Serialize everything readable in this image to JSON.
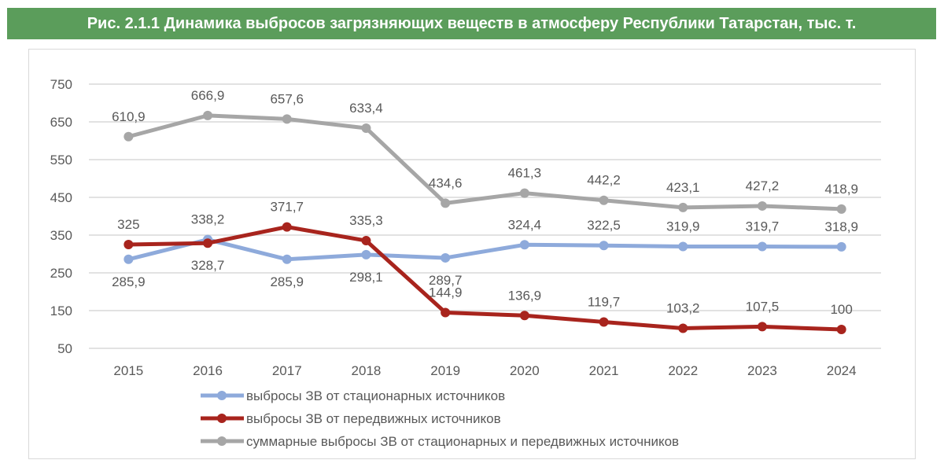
{
  "title": "Рис. 2.1.1 Динамика выбросов загрязняющих веществ в атмосферу Республики Татарстан, тыс. т.",
  "chart_data": {
    "type": "line",
    "title": "Рис. 2.1.1 Динамика выбросов загрязняющих веществ в атмосферу Республики Татарстан, тыс. т.",
    "xlabel": "",
    "ylabel": "",
    "x": [
      "2015",
      "2016",
      "2017",
      "2018",
      "2019",
      "2020",
      "2021",
      "2022",
      "2023",
      "2024"
    ],
    "ylim": [
      50,
      750
    ],
    "yticks": [
      50,
      150,
      250,
      350,
      450,
      550,
      650,
      750
    ],
    "grid": true,
    "legend_position": "bottom",
    "series": [
      {
        "name": "выбросы ЗВ от стационарных источников",
        "color": "#8eaadb",
        "values": [
          285.9,
          338.2,
          285.9,
          298.1,
          289.7,
          324.4,
          322.5,
          319.9,
          319.7,
          318.9
        ],
        "labels": [
          "285,9",
          "338,2",
          "285,9",
          "298,1",
          "289,7",
          "324,4",
          "322,5",
          "319,9",
          "319,7",
          "318,9"
        ],
        "label_pos": [
          "below",
          "above",
          "below",
          "below",
          "below",
          "above",
          "above",
          "above",
          "above",
          "above"
        ]
      },
      {
        "name": "выбросы ЗВ от передвижных источников",
        "color": "#a8241d",
        "values": [
          325,
          328.7,
          371.7,
          335.3,
          144.9,
          136.9,
          119.7,
          103.2,
          107.5,
          100
        ],
        "labels": [
          "325",
          "328,7",
          "371,7",
          "335,3",
          "144,9",
          "136,9",
          "119,7",
          "103,2",
          "107,5",
          "100"
        ],
        "label_pos": [
          "above",
          "below",
          "above",
          "above",
          "above",
          "above",
          "above",
          "above",
          "above",
          "above"
        ]
      },
      {
        "name": "суммарные выбросы ЗВ от стационарных и передвижных источников",
        "color": "#a6a6a6",
        "values": [
          610.9,
          666.9,
          657.6,
          633.4,
          434.6,
          461.3,
          442.2,
          423.1,
          427.2,
          418.9
        ],
        "labels": [
          "610,9",
          "666,9",
          "657,6",
          "633,4",
          "434,6",
          "461,3",
          "442,2",
          "423,1",
          "427,2",
          "418,9"
        ],
        "label_pos": [
          "above",
          "above",
          "above",
          "above",
          "above",
          "above",
          "above",
          "above",
          "above",
          "above"
        ]
      }
    ]
  }
}
